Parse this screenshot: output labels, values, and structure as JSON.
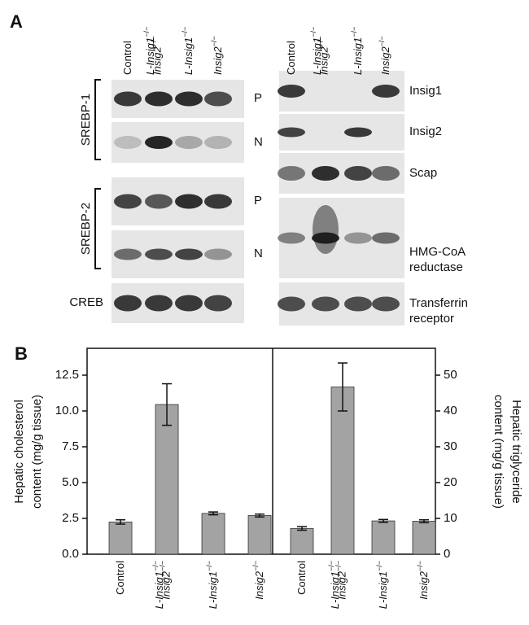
{
  "panel_a": {
    "label": "A",
    "lanes": [
      "Control",
      "L-Insig1−/−Insig2−/−",
      "L-Insig1−/−",
      "Insig2−/−"
    ],
    "left_groups": [
      "SREBP-1",
      "SREBP-2"
    ],
    "left_rows": [
      "P",
      "N",
      "P",
      "N",
      "CREB"
    ],
    "right_rows": [
      [
        "Insig1"
      ],
      [
        "Insig2"
      ],
      [
        "Scap"
      ],
      [
        "HMG-CoA",
        "reductase"
      ],
      [
        "Transferrin",
        "receptor"
      ]
    ]
  },
  "panel_b": {
    "label": "B"
  },
  "chart_data": [
    {
      "type": "bar",
      "ylabel": [
        "Hepatic cholesterol",
        "content (mg/g tissue)"
      ],
      "categories": [
        "Control",
        "L-Insig1−/−Insig2−/−",
        "L-Insig1−/−",
        "Insig2−/−"
      ],
      "values": [
        2.25,
        10.45,
        2.85,
        2.7
      ],
      "errors": [
        0.15,
        1.45,
        0.1,
        0.1
      ],
      "color": "#a3a3a3",
      "ylim": [
        0,
        14.375
      ],
      "yticks": [
        {
          "value": 0,
          "label": "0.0"
        },
        2.5,
        {
          "value": 5,
          "label": "5.0"
        },
        7.5,
        {
          "value": 10,
          "label": "10.0"
        },
        12.5
      ]
    },
    {
      "type": "bar",
      "axis": "y2",
      "ylabel": [
        "Hepatic triglyceride",
        "content (mg/g tissue)"
      ],
      "categories": [
        "Control",
        "L-Insig1−/−Insig2−/−",
        "L-Insig1−/−",
        "Insig2−/−"
      ],
      "values": [
        7.2,
        46.7,
        9.3,
        9.2
      ],
      "errors": [
        0.5,
        6.7,
        0.4,
        0.4
      ],
      "color": "#a3a3a3",
      "y2lim": [
        0,
        57.5
      ],
      "y2ticks": [
        0,
        10,
        20,
        30,
        40,
        50
      ]
    }
  ]
}
